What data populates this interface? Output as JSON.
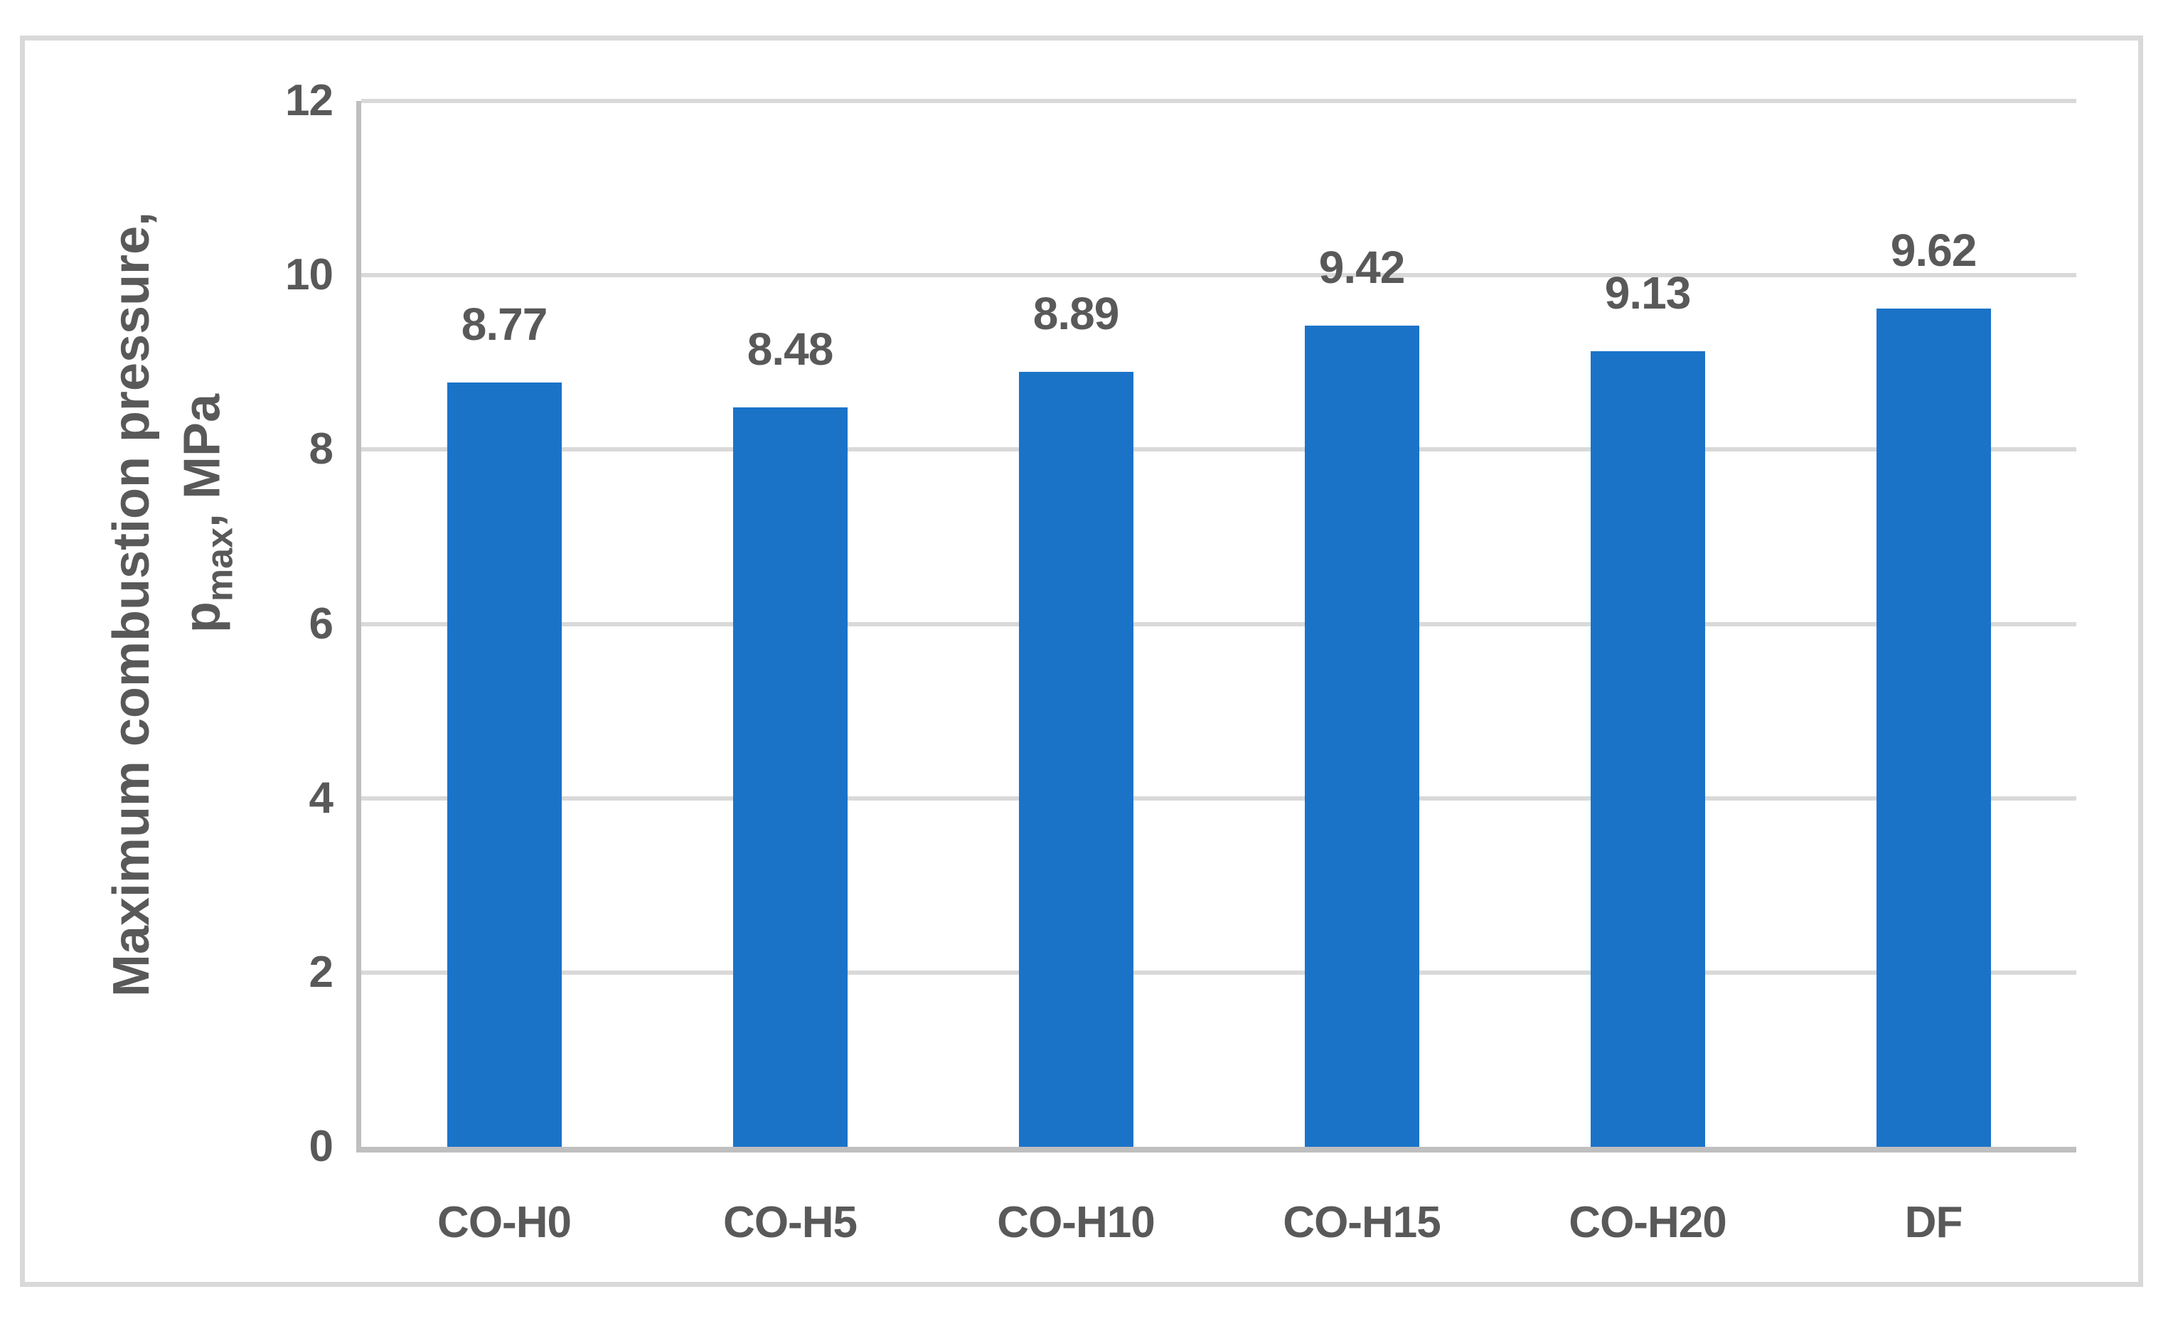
{
  "chart_data": {
    "type": "bar",
    "categories": [
      "CO-H0",
      "CO-H5",
      "CO-H10",
      "CO-H15",
      "CO-H20",
      "DF"
    ],
    "values": [
      8.77,
      8.48,
      8.89,
      9.42,
      9.13,
      9.62
    ],
    "data_labels": [
      "8.77",
      "8.48",
      "8.89",
      "9.42",
      "9.13",
      "9.62"
    ],
    "title": "",
    "xlabel": "",
    "ylabel_line1": "Maximum combustion pressure,",
    "ylabel_line2_prefix": "p",
    "ylabel_line2_sub": "max",
    "ylabel_line2_suffix": ", MPa",
    "ylim": [
      0,
      12
    ],
    "yticks": [
      "0",
      "2",
      "4",
      "6",
      "8",
      "10",
      "12"
    ],
    "grid": "on",
    "legend": "none",
    "colors": {
      "bar": "#1B73C8",
      "gridline": "#D9D9D9",
      "axis": "#BFBFBF",
      "text": "#595959",
      "figure_border": "#D9D9D9",
      "background": "#FFFFFF"
    }
  }
}
